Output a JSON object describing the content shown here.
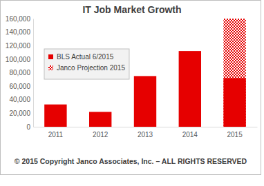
{
  "chart_data": {
    "type": "bar",
    "title": "IT Job Market Growth",
    "categories": [
      "2011",
      "2012",
      "2013",
      "2014",
      "2015"
    ],
    "series": [
      {
        "name": "BLS Actual 6/2015",
        "color": "#e60000",
        "values": [
          33000,
          22000,
          75000,
          112000,
          72000
        ]
      },
      {
        "name": "Janco Projection 2015",
        "color": "#e60000",
        "marker": "hatched",
        "values": [
          null,
          null,
          null,
          null,
          160000
        ]
      }
    ],
    "stacked": false,
    "ylim": [
      0,
      160000
    ],
    "yticks": [
      0,
      {
        "value": 20000,
        "label": "20,000"
      },
      {
        "value": 40000,
        "label": "40,000"
      },
      {
        "value": 60000,
        "label": "60,000"
      },
      {
        "value": 80000,
        "label": "80,000"
      },
      {
        "value": 100000,
        "label": "100,000"
      },
      {
        "value": 120000,
        "label": "120,000"
      },
      {
        "value": 140000,
        "label": "140,000"
      },
      {
        "value": 160000,
        "label": "160,000"
      }
    ],
    "grid": false,
    "legend": "upper left",
    "annotations": [
      "© 2015 Copyright Janco Associates, Inc. – ALL RIGHTS RESERVED"
    ]
  }
}
